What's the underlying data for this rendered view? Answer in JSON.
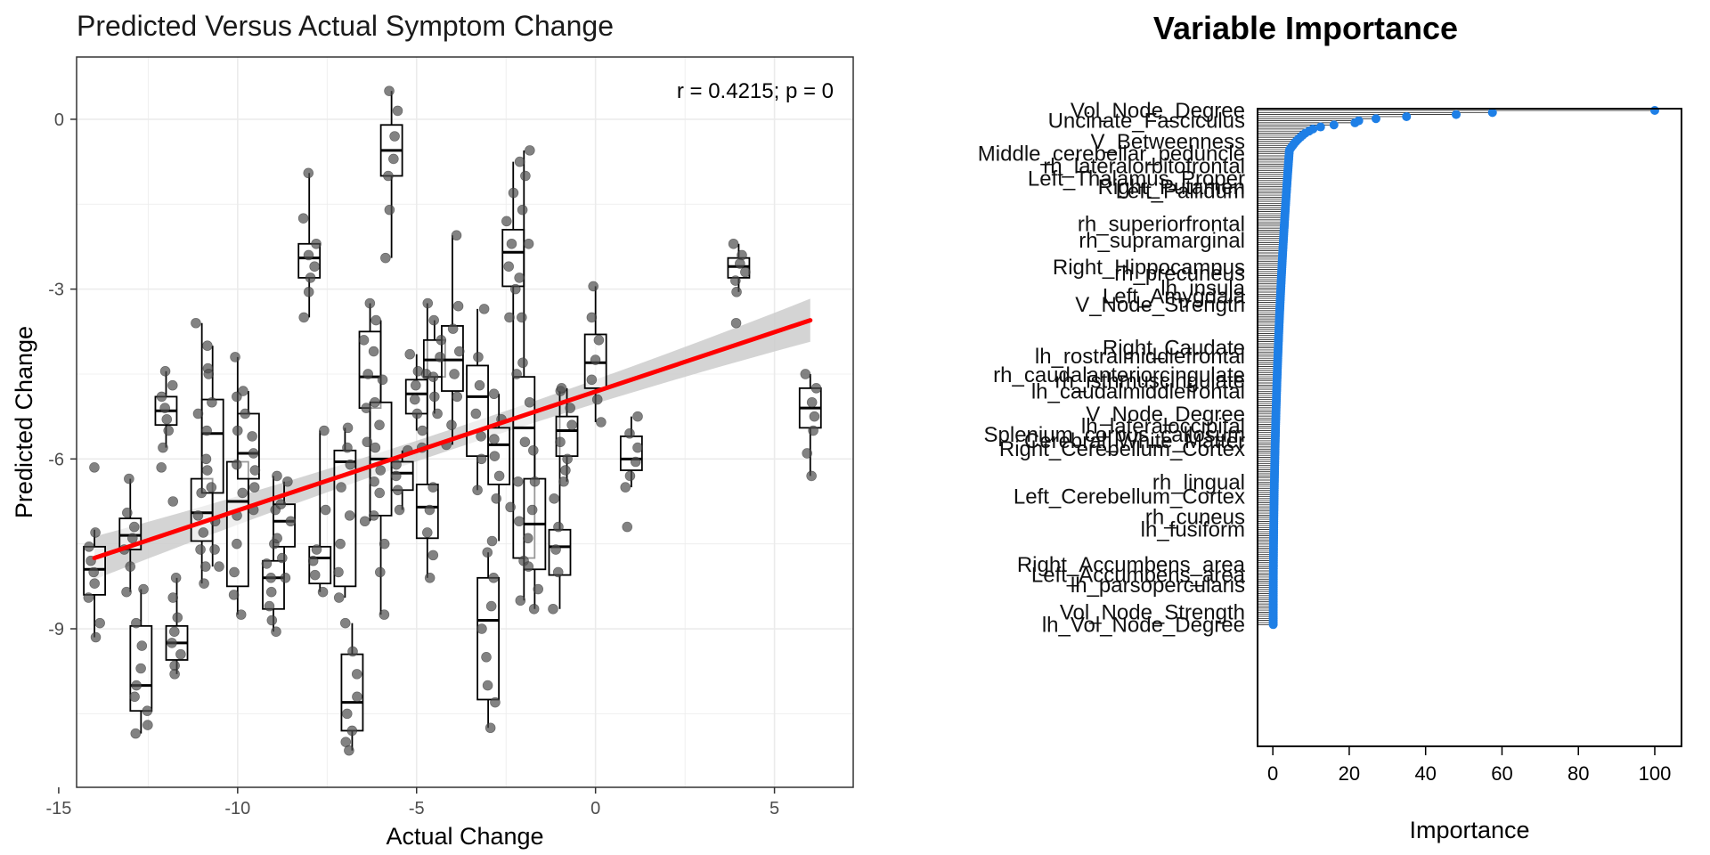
{
  "chart_data": [
    {
      "type": "scatter",
      "title": "Predicted Versus Actual Symptom Change",
      "xlabel": "Actual Change",
      "ylabel": "Predicted Change",
      "annotation": "r = 0.4215; p = 0",
      "xlim": [
        -14.5,
        7.2
      ],
      "ylim": [
        -11.8,
        1.1
      ],
      "x_ticks": [
        -15,
        -10,
        -5,
        0,
        5
      ],
      "y_ticks": [
        0,
        -3,
        -6,
        -9
      ],
      "grid": true,
      "colors": {
        "points": "#4d4d4d",
        "fit_line": "#ff0000",
        "ribbon": "#cccccc",
        "box": "#000000"
      },
      "regression": {
        "x": [
          -14,
          6
        ],
        "y": [
          -7.75,
          -3.55
        ],
        "ci_half_width_ends": 0.38,
        "ci_half_width_center": 0.18
      },
      "groups": [
        {
          "x": -14,
          "q1": -8.4,
          "median": -7.95,
          "q3": -7.55,
          "wmin": -9.15,
          "wmax": -7.25,
          "points": [
            -6.15,
            -7.3,
            -7.55,
            -7.8,
            -8.0,
            -8.2,
            -8.45,
            -8.9,
            -9.15
          ]
        },
        {
          "x": -13,
          "q1": -7.6,
          "median": -7.35,
          "q3": -7.05,
          "wmin": -8.35,
          "wmax": -6.35,
          "points": [
            -6.35,
            -6.95,
            -7.2,
            -7.4,
            -7.6,
            -7.9,
            -8.35
          ]
        },
        {
          "x": -12.7,
          "q1": -10.45,
          "median": -10.0,
          "q3": -8.95,
          "wmin": -10.85,
          "wmax": -8.3,
          "points": [
            -8.3,
            -8.9,
            -9.3,
            -9.7,
            -10.0,
            -10.2,
            -10.45,
            -10.7,
            -10.85
          ]
        },
        {
          "x": -12,
          "q1": -5.4,
          "median": -5.15,
          "q3": -4.9,
          "wmin": -5.8,
          "wmax": -4.45,
          "points": [
            -4.45,
            -4.7,
            -4.9,
            -5.1,
            -5.3,
            -5.5,
            -5.8,
            -6.15,
            -6.75
          ]
        },
        {
          "x": -11.7,
          "q1": -9.55,
          "median": -9.25,
          "q3": -8.95,
          "wmin": -9.8,
          "wmax": -8.1,
          "points": [
            -8.1,
            -8.45,
            -8.8,
            -9.05,
            -9.25,
            -9.45,
            -9.65,
            -9.8
          ]
        },
        {
          "x": -11,
          "q1": -7.45,
          "median": -6.95,
          "q3": -6.35,
          "wmin": -8.2,
          "wmax": -3.6,
          "points": [
            -3.6,
            -4.4,
            -5.2,
            -6.2,
            -6.6,
            -7.0,
            -7.3,
            -7.6,
            -7.9,
            -8.2
          ]
        },
        {
          "x": -10.7,
          "q1": -6.6,
          "median": -5.55,
          "q3": -4.95,
          "wmin": -7.9,
          "wmax": -4.0,
          "points": [
            -4.0,
            -4.5,
            -5.0,
            -5.5,
            -6.0,
            -6.5,
            -7.1,
            -7.6,
            -7.9
          ]
        },
        {
          "x": -10,
          "q1": -8.25,
          "median": -6.75,
          "q3": -6.05,
          "wmin": -8.75,
          "wmax": -4.2,
          "points": [
            -4.2,
            -4.9,
            -5.5,
            -6.1,
            -6.6,
            -7.0,
            -7.5,
            -8.0,
            -8.4,
            -8.75
          ]
        },
        {
          "x": -9.7,
          "q1": -6.35,
          "median": -5.9,
          "q3": -5.2,
          "wmin": -6.9,
          "wmax": -4.8,
          "points": [
            -4.8,
            -5.2,
            -5.6,
            -5.9,
            -6.2,
            -6.5,
            -6.9
          ]
        },
        {
          "x": -9,
          "q1": -8.65,
          "median": -8.1,
          "q3": -7.8,
          "wmin": -9.05,
          "wmax": -6.3,
          "points": [
            -6.3,
            -6.9,
            -7.5,
            -7.85,
            -8.1,
            -8.35,
            -8.6,
            -8.85,
            -9.05
          ]
        },
        {
          "x": -8.7,
          "q1": -7.55,
          "median": -7.1,
          "q3": -6.8,
          "wmin": -8.1,
          "wmax": -6.4,
          "points": [
            -6.4,
            -6.8,
            -7.1,
            -7.4,
            -7.75,
            -8.1
          ]
        },
        {
          "x": -8,
          "q1": -2.8,
          "median": -2.45,
          "q3": -2.2,
          "wmin": -3.5,
          "wmax": -0.95,
          "points": [
            -0.95,
            -1.75,
            -2.2,
            -2.4,
            -2.6,
            -2.8,
            -3.05,
            -3.5
          ]
        },
        {
          "x": -7.7,
          "q1": -8.2,
          "median": -7.75,
          "q3": -7.55,
          "wmin": -8.35,
          "wmax": -5.5,
          "points": [
            -5.5,
            -6.9,
            -7.6,
            -7.8,
            -8.05,
            -8.35
          ]
        },
        {
          "x": -7,
          "q1": -8.25,
          "median": -6.05,
          "q3": -5.85,
          "wmin": -8.45,
          "wmax": -5.45,
          "points": [
            -5.45,
            -5.8,
            -6.1,
            -6.5,
            -7.0,
            -7.5,
            -8.0,
            -8.45
          ]
        },
        {
          "x": -6.8,
          "q1": -10.8,
          "median": -10.3,
          "q3": -9.45,
          "wmin": -11.15,
          "wmax": -8.9,
          "points": [
            -8.9,
            -9.4,
            -9.8,
            -10.2,
            -10.5,
            -10.8,
            -11.0,
            -11.15
          ]
        },
        {
          "x": -6.3,
          "q1": -5.1,
          "median": -4.55,
          "q3": -3.75,
          "wmin": -7.1,
          "wmax": -3.25,
          "points": [
            -3.25,
            -3.9,
            -4.5,
            -5.1,
            -5.7,
            -6.4,
            -7.1
          ]
        },
        {
          "x": -6,
          "q1": -7.0,
          "median": -6.0,
          "q3": -5.0,
          "wmin": -8.75,
          "wmax": -3.55,
          "points": [
            -3.55,
            -4.1,
            -4.6,
            -5.0,
            -5.4,
            -5.8,
            -6.2,
            -6.6,
            -7.0,
            -7.5,
            -8.0,
            -8.75
          ]
        },
        {
          "x": -5.7,
          "q1": -1.0,
          "median": -0.55,
          "q3": -0.1,
          "wmin": -2.45,
          "wmax": 0.5,
          "points": [
            0.5,
            0.15,
            -0.3,
            -0.7,
            -1.0,
            -1.6,
            -2.45
          ]
        },
        {
          "x": -5.4,
          "q1": -6.55,
          "median": -6.25,
          "q3": -6.05,
          "wmin": -6.9,
          "wmax": -5.85,
          "points": [
            -5.85,
            -6.1,
            -6.3,
            -6.55,
            -6.9
          ]
        },
        {
          "x": -5,
          "q1": -5.2,
          "median": -4.85,
          "q3": -4.6,
          "wmin": -5.5,
          "wmax": -4.15,
          "points": [
            -4.15,
            -4.45,
            -4.7,
            -4.95,
            -5.2,
            -5.5
          ]
        },
        {
          "x": -4.7,
          "q1": -7.4,
          "median": -6.85,
          "q3": -6.45,
          "wmin": -8.1,
          "wmax": -3.25,
          "points": [
            -3.25,
            -4.5,
            -5.8,
            -6.5,
            -6.9,
            -7.3,
            -7.7,
            -8.1
          ]
        },
        {
          "x": -4.5,
          "q1": -4.55,
          "median": -4.25,
          "q3": -3.9,
          "wmin": -5.2,
          "wmax": -3.55,
          "points": [
            -3.55,
            -3.9,
            -4.2,
            -4.55,
            -4.9,
            -5.2
          ]
        },
        {
          "x": -4,
          "q1": -4.8,
          "median": -4.25,
          "q3": -3.65,
          "wmin": -5.75,
          "wmax": -2.05,
          "points": [
            -2.05,
            -3.3,
            -3.7,
            -4.1,
            -4.5,
            -4.9,
            -5.4,
            -5.75
          ]
        },
        {
          "x": -3.3,
          "q1": -5.95,
          "median": -4.9,
          "q3": -4.35,
          "wmin": -6.55,
          "wmax": -3.35,
          "points": [
            -3.35,
            -4.2,
            -4.7,
            -5.2,
            -5.6,
            -6.0,
            -6.55
          ]
        },
        {
          "x": -3,
          "q1": -10.25,
          "median": -8.85,
          "q3": -8.1,
          "wmin": -10.75,
          "wmax": -7.65,
          "points": [
            -7.65,
            -8.1,
            -8.6,
            -9.0,
            -9.5,
            -10.0,
            -10.3,
            -10.75
          ]
        },
        {
          "x": -2.7,
          "q1": -6.45,
          "median": -5.75,
          "q3": -5.45,
          "wmin": -7.45,
          "wmax": -4.85,
          "points": [
            -4.85,
            -5.3,
            -5.65,
            -5.95,
            -6.3,
            -6.7,
            -7.45
          ]
        },
        {
          "x": -2.3,
          "q1": -2.95,
          "median": -2.35,
          "q3": -1.95,
          "wmin": -6.85,
          "wmax": -0.75,
          "points": [
            -0.75,
            -1.3,
            -1.8,
            -2.2,
            -2.6,
            -3.0,
            -3.5,
            -4.5,
            -6.85
          ]
        },
        {
          "x": -2,
          "q1": -7.75,
          "median": -5.45,
          "q3": -4.55,
          "wmin": -8.5,
          "wmax": -0.55,
          "points": [
            -0.55,
            -1.0,
            -1.6,
            -2.2,
            -2.8,
            -3.5,
            -4.3,
            -5.0,
            -5.7,
            -6.4,
            -7.1,
            -7.8,
            -8.5
          ]
        },
        {
          "x": -1.7,
          "q1": -7.95,
          "median": -7.15,
          "q3": -6.35,
          "wmin": -8.65,
          "wmax": -5.85,
          "points": [
            -5.85,
            -6.4,
            -6.9,
            -7.4,
            -7.9,
            -8.3,
            -8.65
          ]
        },
        {
          "x": -1,
          "q1": -8.05,
          "median": -7.55,
          "q3": -7.25,
          "wmin": -8.65,
          "wmax": -4.8,
          "points": [
            -4.8,
            -6.2,
            -6.7,
            -7.2,
            -7.6,
            -8.0,
            -8.65
          ]
        },
        {
          "x": -0.8,
          "q1": -5.95,
          "median": -5.5,
          "q3": -5.25,
          "wmin": -6.4,
          "wmax": -4.75,
          "points": [
            -4.75,
            -5.1,
            -5.4,
            -5.7,
            -6.0,
            -6.4
          ]
        },
        {
          "x": 0,
          "q1": -4.75,
          "median": -4.3,
          "q3": -3.8,
          "wmin": -5.35,
          "wmax": -2.95,
          "points": [
            -2.95,
            -3.5,
            -3.9,
            -4.25,
            -4.6,
            -4.95,
            -5.35
          ]
        },
        {
          "x": 1,
          "q1": -6.2,
          "median": -6.0,
          "q3": -5.6,
          "wmin": -6.5,
          "wmax": -5.25,
          "points": [
            -5.25,
            -5.55,
            -5.8,
            -6.05,
            -6.3,
            -6.5,
            -7.2
          ]
        },
        {
          "x": 4,
          "q1": -2.8,
          "median": -2.6,
          "q3": -2.45,
          "wmin": -3.05,
          "wmax": -2.2,
          "points": [
            -2.2,
            -2.4,
            -2.55,
            -2.7,
            -2.85,
            -3.05,
            -3.6
          ]
        },
        {
          "x": 6,
          "q1": -5.45,
          "median": -5.1,
          "q3": -4.75,
          "wmin": -6.3,
          "wmax": -4.5,
          "points": [
            -4.5,
            -4.75,
            -5.0,
            -5.25,
            -5.5,
            -5.9,
            -6.3
          ]
        }
      ]
    },
    {
      "type": "dotplot",
      "title": "Variable Importance",
      "xlabel": "Importance",
      "xlim": [
        -4,
        107
      ],
      "x_ticks": [
        0,
        20,
        40,
        60,
        80,
        100
      ],
      "colors": {
        "dots": "#1e7fe6",
        "lines": "#000000"
      },
      "top_values": [
        100,
        57.5,
        48,
        35,
        27,
        22.5,
        21.5,
        16,
        12.5,
        10.5,
        9.5,
        8.5,
        7.8,
        7.2,
        6.6,
        6.1,
        5.6,
        5.2,
        4.8,
        4.4
      ],
      "tail_start": 4.2,
      "tail_end": 0.1,
      "variable_count": 250,
      "labels": [
        {
          "text": "Vol_Node_Degree",
          "rank": 1
        },
        {
          "text": "Uncinate_Fasciculus",
          "rank": 6
        },
        {
          "text": "V_Betweenness",
          "rank": 16
        },
        {
          "text": "Middle_cerebellar_peduncle",
          "rank": 22
        },
        {
          "text": "rh_lateralorbitofrontal",
          "rank": 28
        },
        {
          "text": "Left_Thalamus_Proper",
          "rank": 34
        },
        {
          "text": "Right_Putamen",
          "rank": 38
        },
        {
          "text": "Left_Pallidum",
          "rank": 40
        },
        {
          "text": "rh_superiorfrontal",
          "rank": 56
        },
        {
          "text": "rh_supramarginal",
          "rank": 64
        },
        {
          "text": "Right_Hippocampus",
          "rank": 77
        },
        {
          "text": "rh_precuneus",
          "rank": 80
        },
        {
          "text": "lh_insula",
          "rank": 87
        },
        {
          "text": "Left_Amygdala",
          "rank": 91
        },
        {
          "text": "V_Node_Strength",
          "rank": 95
        },
        {
          "text": "Right_Caudate",
          "rank": 116
        },
        {
          "text": "lh_rostralmiddlefrontal",
          "rank": 120
        },
        {
          "text": "rh_caudalanteriorcingulate",
          "rank": 129
        },
        {
          "text": "rh_isthmuscingulate",
          "rank": 132
        },
        {
          "text": "lh_caudalmiddlefrontal",
          "rank": 137
        },
        {
          "text": "V_Node_Degree",
          "rank": 148
        },
        {
          "text": "lh_lateraloccipital",
          "rank": 154
        },
        {
          "text": "Splenium_corpus_callosum",
          "rank": 158
        },
        {
          "text": "Cerebral_White_Matter",
          "rank": 161
        },
        {
          "text": "Right_Cerebellum_Cortex",
          "rank": 165
        },
        {
          "text": "rh_lingual",
          "rank": 181
        },
        {
          "text": "Left_Cerebellum_Cortex",
          "rank": 188
        },
        {
          "text": "rh_cuneus",
          "rank": 198
        },
        {
          "text": "lh_fusiform",
          "rank": 204
        },
        {
          "text": "Right_Accumbens_area",
          "rank": 221
        },
        {
          "text": "Left_Accumbens_area",
          "rank": 226
        },
        {
          "text": "lh_parsopercularis",
          "rank": 231
        },
        {
          "text": "Vol_Node_Strength",
          "rank": 244
        },
        {
          "text": "lh_Vol_Node_Degree",
          "rank": 250
        }
      ]
    }
  ]
}
